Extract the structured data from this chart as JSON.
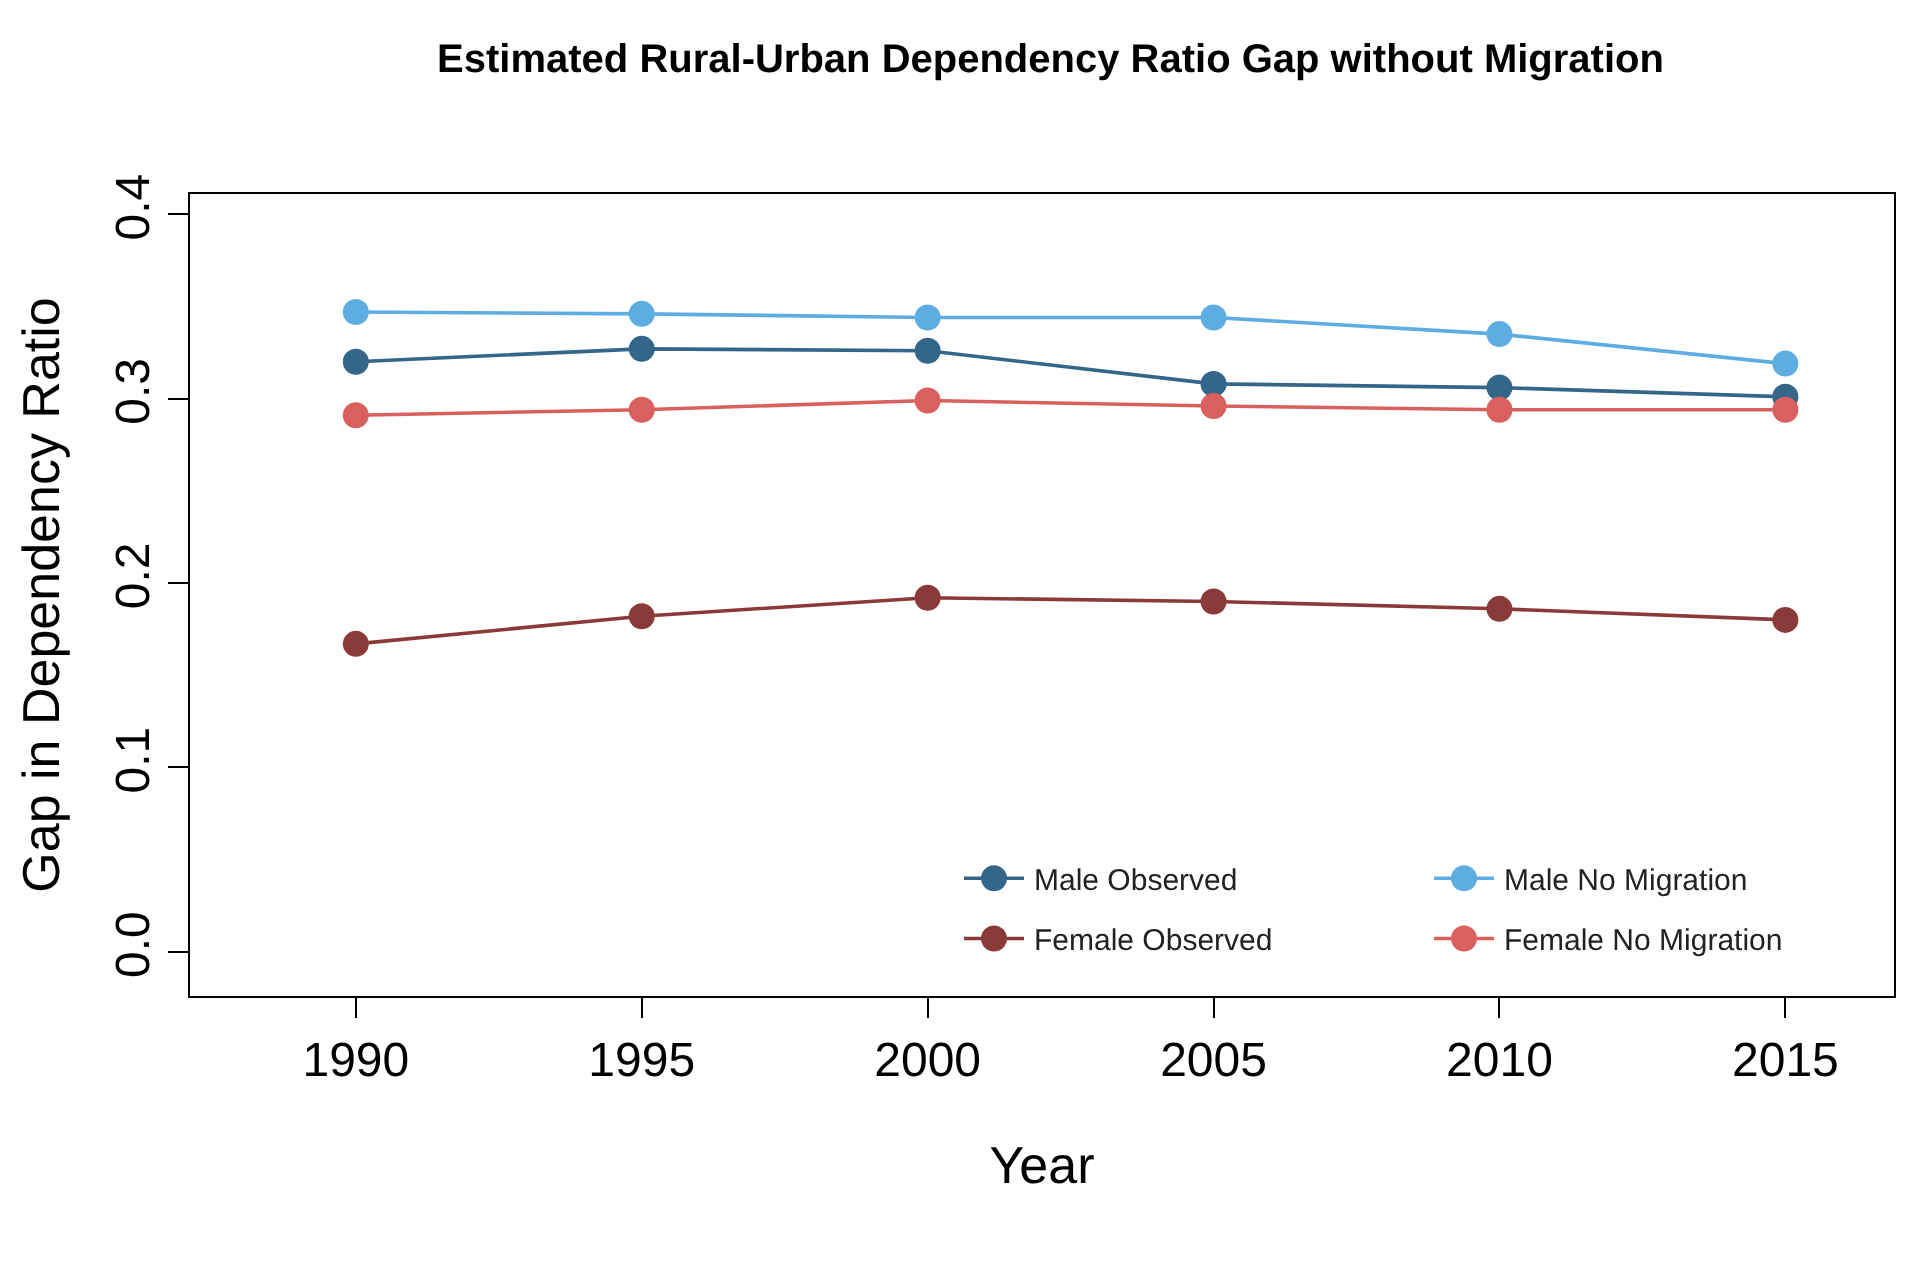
{
  "chart_data": {
    "type": "line",
    "title": "Estimated Rural-Urban Dependency Ratio Gap without Migration",
    "xlabel": "Year",
    "ylabel": "Gap in Dependency Ratio",
    "x": [
      1990,
      1995,
      2000,
      2005,
      2010,
      2015
    ],
    "series": [
      {
        "name": "Male Observed",
        "color": "#336688",
        "values": [
          0.32,
          0.327,
          0.326,
          0.308,
          0.306,
          0.301
        ]
      },
      {
        "name": "Male No Migration",
        "color": "#5dade2",
        "values": [
          0.347,
          0.346,
          0.344,
          0.344,
          0.335,
          0.319
        ]
      },
      {
        "name": "Female Observed",
        "color": "#8b3a3a",
        "values": [
          0.167,
          0.182,
          0.192,
          0.19,
          0.186,
          0.18
        ]
      },
      {
        "name": "Female No Migration",
        "color": "#d9605e",
        "values": [
          0.291,
          0.294,
          0.299,
          0.296,
          0.294,
          0.294
        ]
      }
    ],
    "xlim": [
      1987.1,
      2016.9
    ],
    "xticks": [
      1990,
      1995,
      2000,
      2005,
      2010,
      2015
    ],
    "ylim": [
      -0.024,
      0.411
    ],
    "yticks": [
      {
        "value": 0,
        "label": "0.0"
      },
      {
        "value": 0.1,
        "label": "0.1"
      },
      {
        "value": 0.2,
        "label": "0.2"
      },
      {
        "value": 0.3,
        "label": "0.3"
      },
      {
        "value": 0.4,
        "label": "0.4"
      }
    ],
    "legend": "bottom right",
    "marker": "circle",
    "line_style": "solid"
  }
}
